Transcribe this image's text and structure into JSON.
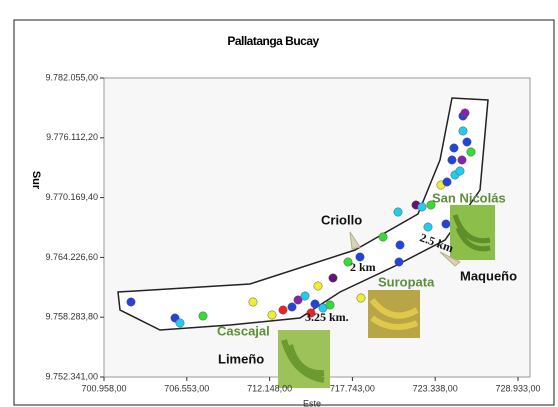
{
  "chart_data": {
    "type": "scatter",
    "title": "Pallatanga Bucay",
    "xlabel": "Este",
    "ylabel": "Sur",
    "xlim": [
      700958,
      728933
    ],
    "xticks": [
      {
        "value": 700958,
        "label": "700.958,00"
      },
      {
        "value": 706553,
        "label": "706.553,00"
      },
      {
        "value": 712148,
        "label": "712.148,00"
      },
      {
        "value": 717743,
        "label": "717.743,00"
      },
      {
        "value": 723338,
        "label": "723.338,00"
      },
      {
        "value": 728933,
        "label": "728.933,00"
      }
    ],
    "ylim": [
      9752341,
      9782055
    ],
    "yticks": [
      {
        "value": 9752341,
        "label": "9.752.341,00"
      },
      {
        "value": 9758283.8,
        "label": "9.758.283,80"
      },
      {
        "value": 9764226.6,
        "label": "9.764.226,60"
      },
      {
        "value": 9770169.4,
        "label": "9.770.169,40"
      },
      {
        "value": 9776112.2,
        "label": "9.776.112,20"
      },
      {
        "value": 9782055,
        "label": "9.782.055,00"
      }
    ],
    "x": [
      702782,
      705756,
      706093,
      707647,
      711026,
      712310,
      713053,
      713661,
      714067,
      714540,
      715215,
      715756,
      716229,
      714945,
      715418,
      716432,
      717445,
      718256,
      719810,
      720824,
      720959,
      720891,
      722040,
      722445,
      723053,
      722851,
      724067,
      723729,
      724135,
      724675,
      724472,
      724608,
      725486,
      725756,
      725148,
      725013,
      725216,
      725216,
      725351,
      718323
    ],
    "values": [
      9759794,
      9758204,
      9757707,
      9758403,
      9759794,
      9758502,
      9758999,
      9759297,
      9759993,
      9760390,
      9759595,
      9759198,
      9759496,
      9758701,
      9761384,
      9762179,
      9763769,
      9764266,
      9766254,
      9768738,
      9765459,
      9763769,
      9769434,
      9769235,
      9769434,
      9767247,
      9767546,
      9771421,
      9771719,
      9772415,
      9773906,
      9775098,
      9775695,
      9774701,
      9773906,
      9772813,
      9776788,
      9778279,
      9778577,
      9760191
    ],
    "colors": [
      "#2244dd",
      "#2244dd",
      "#22ccee",
      "#33dd33",
      "#eeee33",
      "#eeee33",
      "#ee2222",
      "#2244dd",
      "#8822aa",
      "#22ccee",
      "#2244dd",
      "#22ccee",
      "#33dd33",
      "#ee2222",
      "#eeee33",
      "#661177",
      "#33dd33",
      "#2244dd",
      "#33dd33",
      "#22ccee",
      "#2244dd",
      "#2244dd",
      "#661177",
      "#22ccee",
      "#33dd33",
      "#22ccee",
      "#2244dd",
      "#eeee33",
      "#2244dd",
      "#22ccee",
      "#2244dd",
      "#2244dd",
      "#2244dd",
      "#33dd33",
      "#8822aa",
      "#22ccee",
      "#22ccee",
      "#2244dd",
      "#8822aa",
      "#eeee33"
    ],
    "annotations": [
      "Criollo",
      "2 km",
      "2.5 km",
      "San Nicolás",
      "Maqueño",
      "Suropata",
      "Cascajal",
      "3.25 km.",
      "Limeño"
    ]
  }
}
